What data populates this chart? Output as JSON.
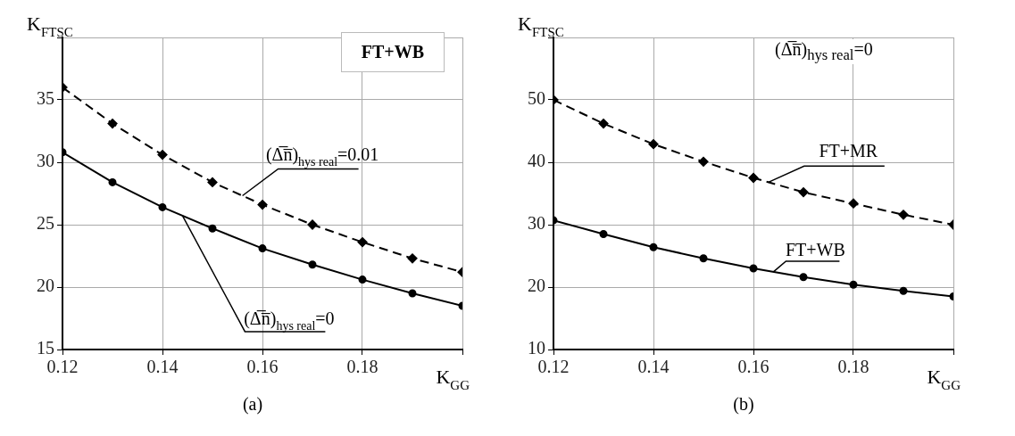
{
  "chart_data": [
    {
      "type": "line",
      "title": "(a)",
      "xlabel": "K$_{GG}$",
      "ylabel": "K$_{FTSC}$",
      "annotations": [
        "FT+WB"
      ],
      "x": [
        0.12,
        0.13,
        0.14,
        0.15,
        0.16,
        0.17,
        0.18,
        0.19,
        0.2
      ],
      "series": [
        {
          "name": "(Δ̅n̅)$_{hys real}$=0.01",
          "color": "#000000",
          "line_style": "dashed",
          "marker": "diamond",
          "values": [
            36,
            33.1,
            30.6,
            28.4,
            26.6,
            25.0,
            23.6,
            22.3,
            21.2
          ]
        },
        {
          "name": "(Δ̅n̅)$_{hys real}$=0",
          "color": "#000000",
          "line_style": "solid",
          "marker": "circle",
          "values": [
            30.8,
            28.4,
            26.4,
            24.7,
            23.1,
            21.8,
            20.6,
            19.5,
            18.5
          ]
        }
      ],
      "xlim": [
        0.12,
        0.2
      ],
      "ylim": [
        15,
        40
      ],
      "xticks": [
        0.12,
        0.14,
        0.16,
        0.18,
        {
          "value": 0.2,
          "label": null
        }
      ],
      "yticks": [
        15,
        20,
        25,
        30,
        35,
        {
          "value": 40,
          "label": null
        }
      ],
      "grid": true,
      "legend": false
    },
    {
      "type": "line",
      "title": "(b)",
      "xlabel": "K$_{GG}$",
      "ylabel": "K$_{FTSC}$",
      "annotations": [
        "(Δ̅n̅)$_{hys real}$=0"
      ],
      "x": [
        0.12,
        0.13,
        0.14,
        0.15,
        0.16,
        0.17,
        0.18,
        0.19,
        0.2
      ],
      "series": [
        {
          "name": "FT+MR",
          "color": "#000000",
          "line_style": "dashed",
          "marker": "diamond",
          "values": [
            50,
            46.2,
            42.9,
            40.1,
            37.5,
            35.2,
            33.4,
            31.6,
            30
          ]
        },
        {
          "name": "FT+WB",
          "color": "#000000",
          "line_style": "solid",
          "marker": "circle",
          "values": [
            30.7,
            28.5,
            26.4,
            24.6,
            23,
            21.6,
            20.4,
            19.4,
            18.5
          ]
        }
      ],
      "xlim": [
        0.12,
        0.2
      ],
      "ylim": [
        10,
        60
      ],
      "xticks": [
        0.12,
        0.14,
        0.16,
        0.18,
        {
          "value": 0.2,
          "label": null
        }
      ],
      "yticks": [
        10,
        20,
        30,
        40,
        50,
        {
          "value": 60,
          "label": null
        }
      ],
      "grid": true,
      "legend": false
    }
  ]
}
